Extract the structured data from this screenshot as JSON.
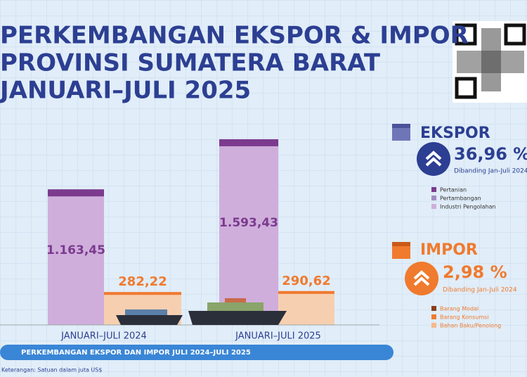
{
  "chart_data": {
    "type": "bar",
    "title_lines": [
      "PERKEMBANGAN EKSPOR & IMPOR",
      "PROVINSI SUMATERA BARAT",
      "JANUARI–JULI 2025"
    ],
    "categories": [
      "JANUARI–JULI 2024",
      "JANUARI–JULI 2025"
    ],
    "series": [
      {
        "name": "EKSPOR",
        "color": "#cfaedb",
        "values": [
          1163.45,
          1593.43
        ],
        "value_labels": [
          "1.163,45",
          "1.593,43"
        ]
      },
      {
        "name": "IMPOR",
        "color": "#f6cfb0",
        "values": [
          282.22,
          290.62
        ],
        "value_labels": [
          "282,22",
          "290,62"
        ]
      }
    ],
    "ylim": [
      0,
      1750
    ],
    "banner": "PERKEMBANGAN EKSPOR DAN IMPOR JULI 2024–JULI 2025",
    "note": "Keterangan: Satuan dalam juta US$"
  },
  "panels": [
    {
      "change": "36,96 %",
      "compare": "Dibanding Jan-Juli 2024",
      "legend": [
        "Pertanian",
        "Pertambangan",
        "Industri Pengolahan"
      ]
    },
    {
      "change": "2,98 %",
      "compare": "Dibanding Jan-Juli 2024",
      "legend": [
        "Barang Modal",
        "Barang Konsumsi",
        "Bahan Baku/Penolong"
      ]
    }
  ]
}
